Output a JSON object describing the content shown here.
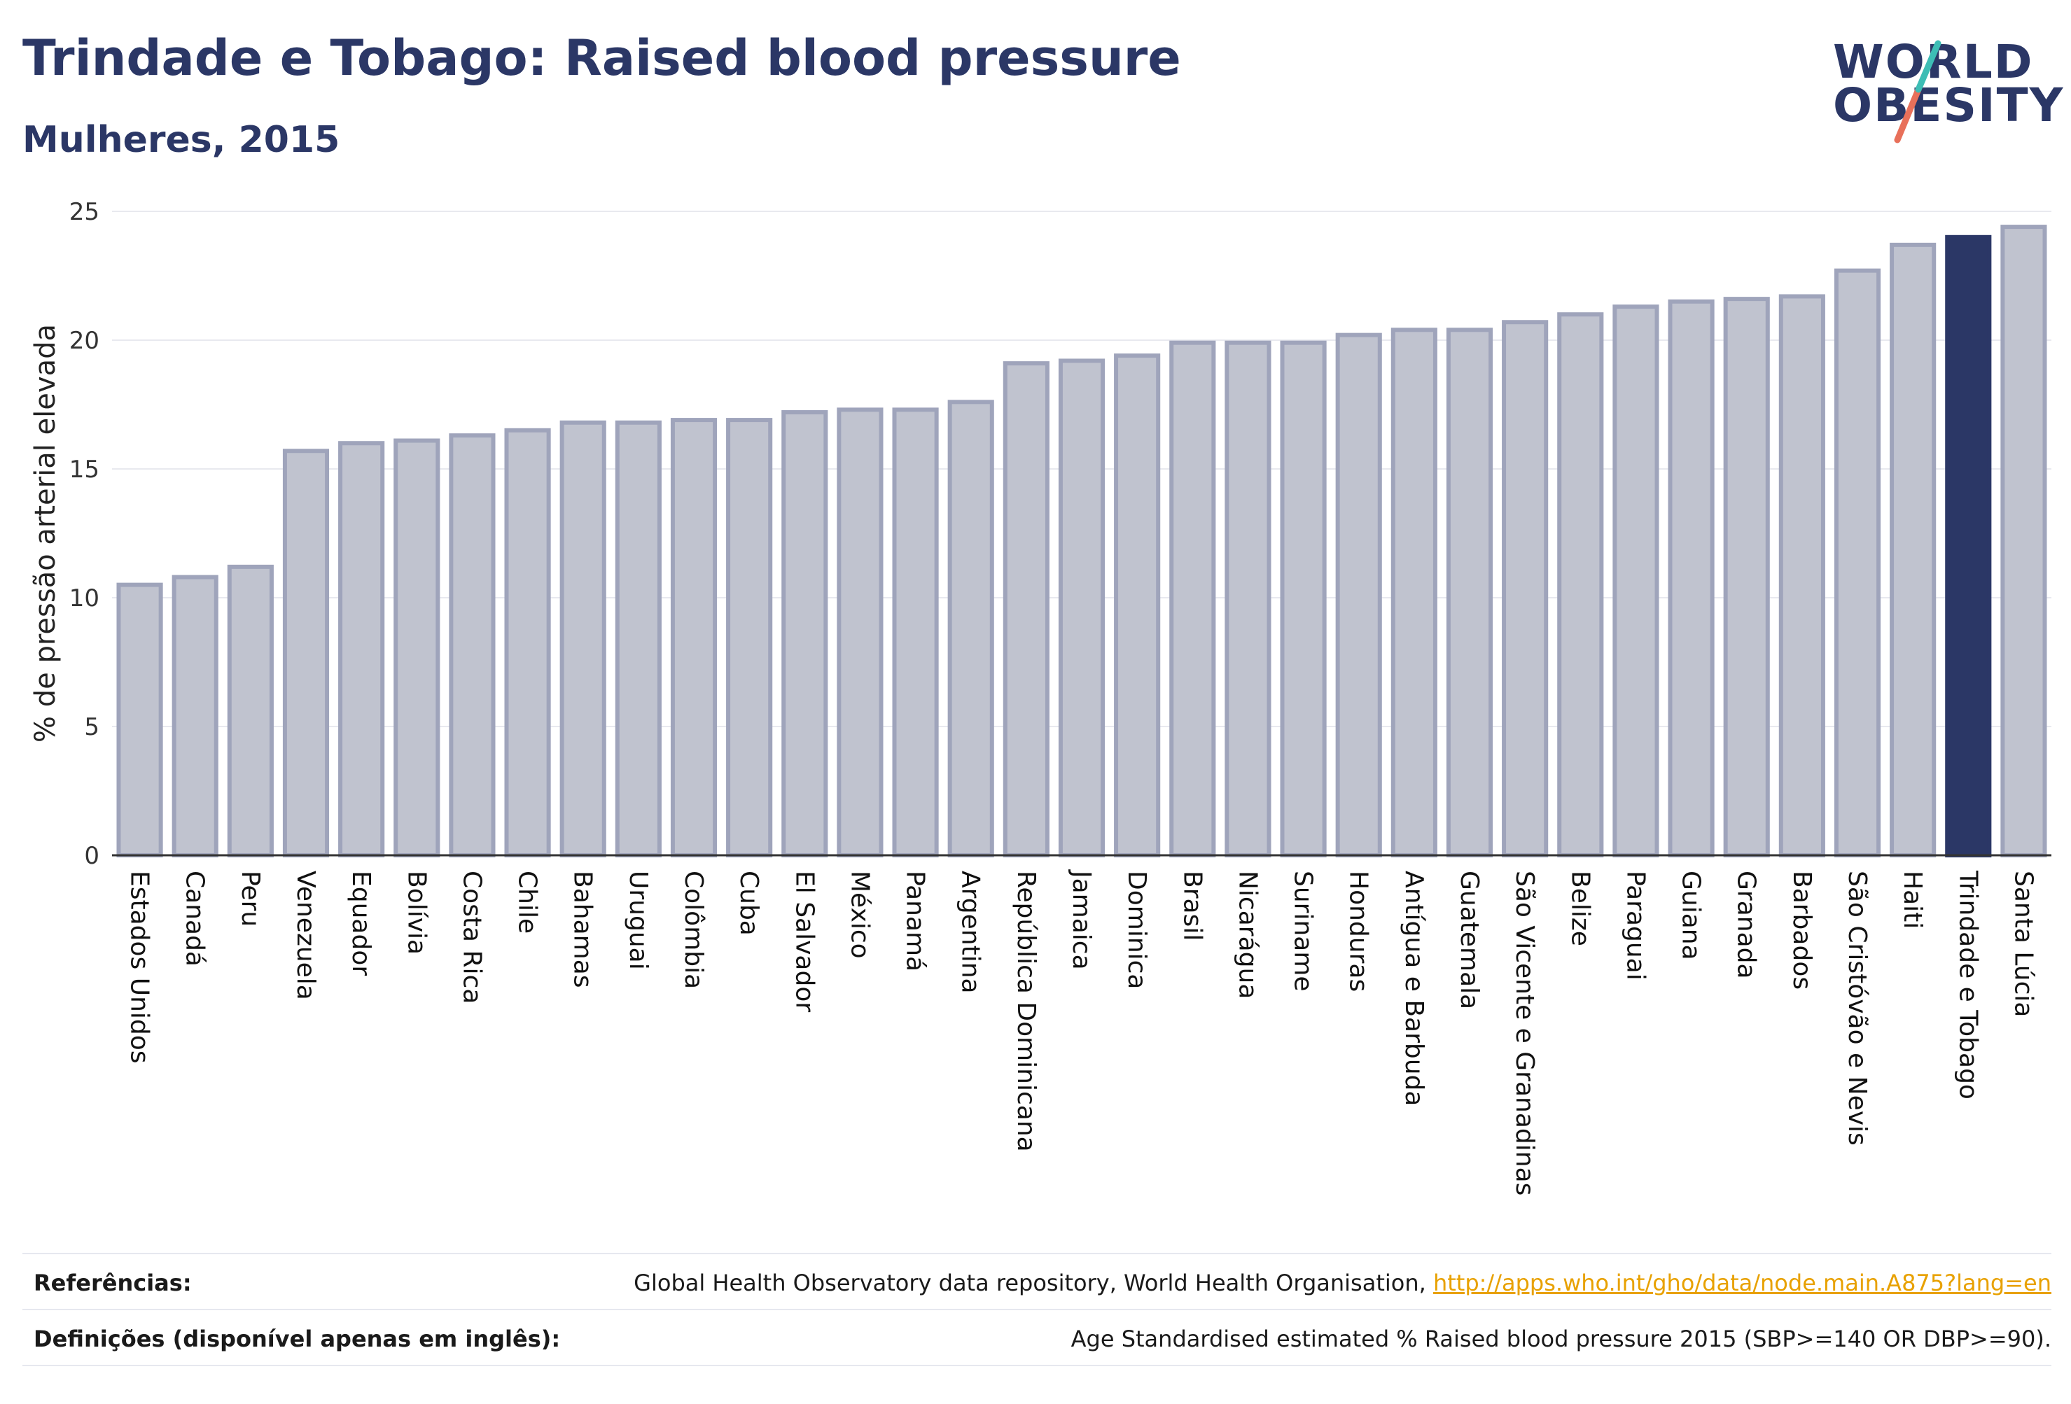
{
  "header": {
    "title": "Trindade e Tobago: Raised blood pressure",
    "subtitle": "Mulheres, 2015"
  },
  "logo": {
    "line1": "WORLD",
    "line2": "OBESITY",
    "colors": {
      "text": "#2b3766",
      "slash_teal": "#3dbdb5",
      "slash_coral": "#e8705a"
    }
  },
  "chart_data": {
    "type": "bar",
    "ylabel": "% de pressão arterial elevada",
    "ylim": [
      0,
      25
    ],
    "yticks": [
      0,
      5,
      10,
      15,
      20,
      25
    ],
    "grid": true,
    "categories": [
      "Estados Unidos",
      "Canadá",
      "Peru",
      "Venezuela",
      "Equador",
      "Bolívia",
      "Costa Rica",
      "Chile",
      "Bahamas",
      "Uruguai",
      "Colômbia",
      "Cuba",
      "El Salvador",
      "México",
      "Panamá",
      "Argentina",
      "República Dominicana",
      "Jamaica",
      "Dominica",
      "Brasil",
      "Nicarágua",
      "Suriname",
      "Honduras",
      "Antígua e Barbuda",
      "Guatemala",
      "São Vicente e Granadinas",
      "Belize",
      "Paraguai",
      "Guiana",
      "Granada",
      "Barbados",
      "São Cristóvão e Nevis",
      "Haiti",
      "Trindade e Tobago",
      "Santa Lúcia"
    ],
    "values": [
      10.5,
      10.8,
      11.2,
      15.7,
      16.0,
      16.1,
      16.3,
      16.5,
      16.8,
      16.8,
      16.9,
      16.9,
      17.2,
      17.3,
      17.3,
      17.6,
      19.1,
      19.2,
      19.4,
      19.9,
      19.9,
      19.9,
      20.2,
      20.4,
      20.4,
      20.7,
      21.0,
      21.3,
      21.5,
      21.6,
      21.7,
      22.7,
      23.7,
      24.0,
      24.4
    ],
    "highlight": "Trindade e Tobago",
    "colors": {
      "bar": "#c0c3cf",
      "bar_border": "#9fa4bb",
      "highlight": "#2b3766",
      "grid": "#e8e9ef",
      "axis": "#333333"
    }
  },
  "footer": {
    "references_label": "Referências:",
    "references_text": "Global Health Observatory data repository, World Health Organisation, ",
    "references_link": "http://apps.who.int/gho/data/node.main.A875?lang=en",
    "definitions_label": "Definições (disponível apenas em inglês):",
    "definitions_text": "Age Standardised estimated % Raised blood pressure 2015 (SBP>=140 OR DBP>=90)."
  }
}
